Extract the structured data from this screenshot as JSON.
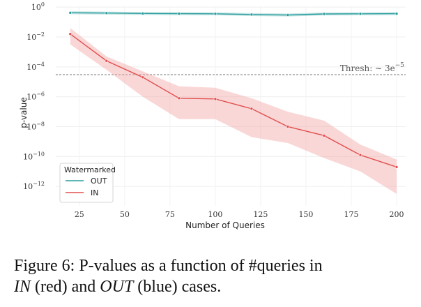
{
  "chart_data": {
    "type": "line",
    "xlabel": "Number of Queries",
    "ylabel": "p-value",
    "yscale": "log",
    "xlim": [
      12,
      205
    ],
    "ylim_exponent": [
      -13.3,
      0.1
    ],
    "x_ticks": [
      25,
      50,
      75,
      100,
      125,
      150,
      175,
      200
    ],
    "y_ticks": [
      {
        "exp": 0,
        "base": "10",
        "sup": "0"
      },
      {
        "exp": -2,
        "base": "10",
        "sup": "−2"
      },
      {
        "exp": -4,
        "base": "10",
        "sup": "−4"
      },
      {
        "exp": -6,
        "base": "10",
        "sup": "−6"
      },
      {
        "exp": -8,
        "base": "10",
        "sup": "−8"
      },
      {
        "exp": -10,
        "base": "10",
        "sup": "−10"
      },
      {
        "exp": -12,
        "base": "10",
        "sup": "−12"
      }
    ],
    "grid": true,
    "legend": {
      "title": "Watermarked",
      "placement": "bottom-left"
    },
    "threshold": {
      "value": 3e-05,
      "label": "Thresh:",
      "label_math": "∼ 3e",
      "label_sup": "−5"
    },
    "x": [
      20,
      40,
      60,
      80,
      100,
      120,
      140,
      160,
      180,
      200
    ],
    "series": [
      {
        "name": "OUT",
        "color": "#2a9d9d",
        "values_log10": [
          -0.38,
          -0.4,
          -0.43,
          -0.44,
          -0.45,
          -0.5,
          -0.53,
          -0.46,
          -0.45,
          -0.44
        ],
        "band_low_log10": [
          -0.48,
          -0.5,
          -0.53,
          -0.54,
          -0.55,
          -0.6,
          -0.63,
          -0.56,
          -0.55,
          -0.54
        ],
        "band_high_log10": [
          -0.28,
          -0.3,
          -0.33,
          -0.34,
          -0.35,
          -0.4,
          -0.43,
          -0.36,
          -0.35,
          -0.34
        ]
      },
      {
        "name": "IN",
        "color": "#e0504f",
        "band_color": "#f4a6a6",
        "values_log10": [
          -1.8,
          -3.6,
          -4.7,
          -6.1,
          -6.15,
          -6.8,
          -8.0,
          -8.6,
          -9.9,
          -10.7
        ],
        "band_low_log10": [
          -2.5,
          -4.2,
          -6.0,
          -7.5,
          -7.5,
          -8.7,
          -9.1,
          -10.1,
          -11.0,
          -12.5
        ],
        "band_high_log10": [
          -1.4,
          -3.3,
          -4.3,
          -5.3,
          -5.4,
          -6.1,
          -7.0,
          -7.6,
          -9.2,
          -10.2
        ]
      }
    ]
  },
  "caption": {
    "figure_label": "Figure 6:",
    "text_main": "P-values as a function of #queries in",
    "in_word": "IN",
    "text_red": "(red) and",
    "out_word": "OUT",
    "text_blue": "(blue) cases."
  }
}
